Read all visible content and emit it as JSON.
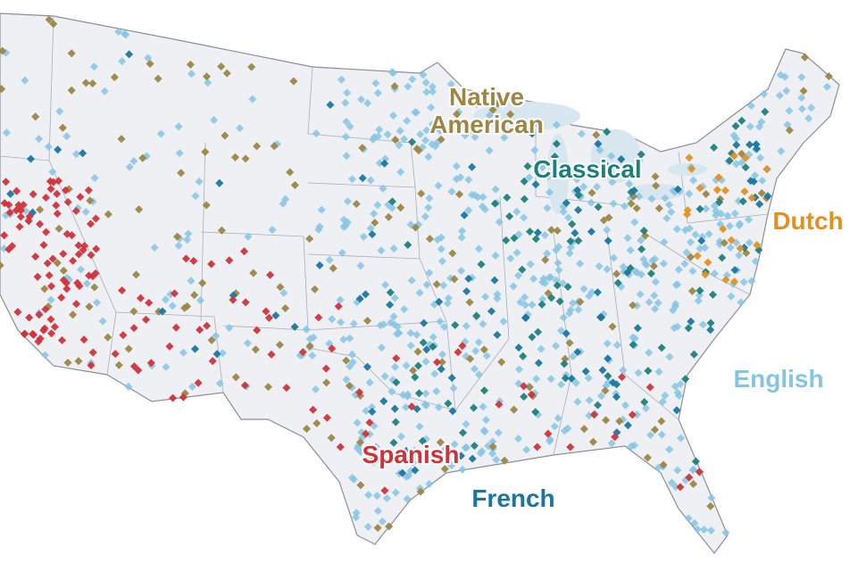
{
  "labels": [
    {
      "lines": [
        "Native",
        "American"
      ],
      "color": "#9c8646"
    },
    {
      "lines": [
        "Classical"
      ],
      "color": "#1d7f7b"
    },
    {
      "lines": [
        "Dutch"
      ],
      "color": "#e3901f"
    },
    {
      "lines": [
        "English"
      ],
      "color": "#86c4e4"
    },
    {
      "lines": [
        "Spanish"
      ],
      "color": "#d0323a"
    },
    {
      "lines": [
        "French"
      ],
      "color": "#1a76a0"
    }
  ]
}
